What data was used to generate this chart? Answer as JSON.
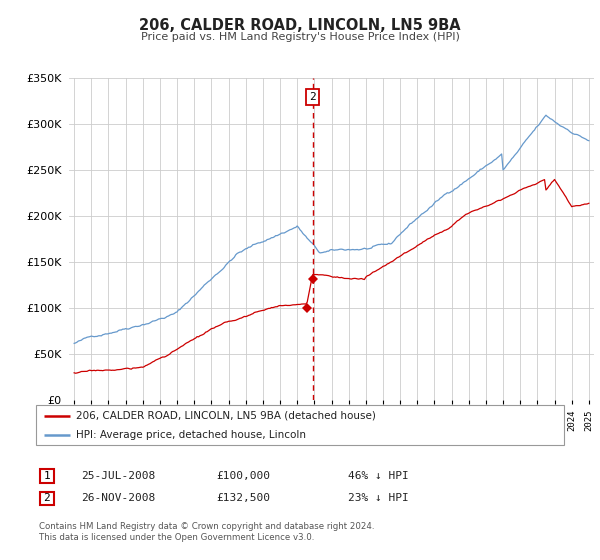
{
  "title": "206, CALDER ROAD, LINCOLN, LN5 9BA",
  "subtitle": "Price paid vs. HM Land Registry's House Price Index (HPI)",
  "legend_entry1": "206, CALDER ROAD, LINCOLN, LN5 9BA (detached house)",
  "legend_entry2": "HPI: Average price, detached house, Lincoln",
  "table_rows": [
    {
      "num": "1",
      "date": "25-JUL-2008",
      "price": "£100,000",
      "pct": "46% ↓ HPI"
    },
    {
      "num": "2",
      "date": "26-NOV-2008",
      "price": "£132,500",
      "pct": "23% ↓ HPI"
    }
  ],
  "footnote": "Contains HM Land Registry data © Crown copyright and database right 2024.\nThis data is licensed under the Open Government Licence v3.0.",
  "property_color": "#cc0000",
  "hpi_color": "#6699cc",
  "dashed_line_color": "#cc0000",
  "ylim": [
    0,
    350000
  ],
  "yticks": [
    0,
    50000,
    100000,
    150000,
    200000,
    250000,
    300000,
    350000
  ],
  "xlim_start": 1994.7,
  "xlim_end": 2025.3,
  "marker1_x": 2008.56,
  "marker1_y": 100000,
  "marker2_x": 2008.9,
  "marker2_y": 132500,
  "dashed_x": 2008.9,
  "background_color": "#ffffff",
  "grid_color": "#cccccc"
}
